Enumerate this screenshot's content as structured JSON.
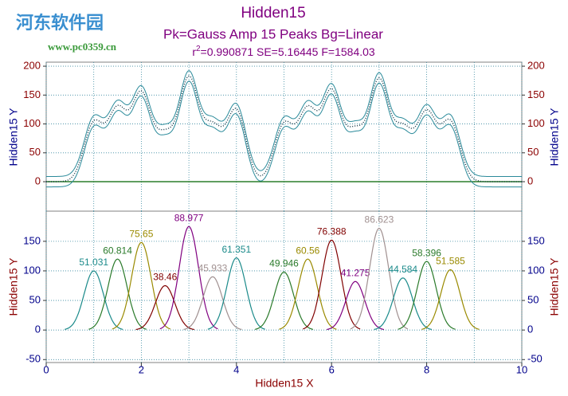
{
  "chart_data": {
    "type": "peakfit",
    "watermark": {
      "name": "河东软件园",
      "url": "www.pc0359.cn"
    },
    "title": "Hidden15",
    "subtitle": "Pk=Gauss Amp  15 Peaks  Bg=Linear",
    "stats": [
      "r",
      "2",
      "=0.990871  SE=5.16445  F=1584.03"
    ],
    "x_label": "Hidden15 X",
    "y_label": "Hidden15 Y",
    "xlim": [
      0,
      10
    ],
    "xticks": [
      0,
      2,
      4,
      6,
      8,
      10
    ],
    "xminor": [
      1,
      3,
      5,
      7,
      9
    ],
    "top": {
      "ylim": [
        -51,
        207
      ],
      "yticks": [
        0,
        50,
        100,
        150,
        200
      ],
      "band_halfwidth": 9
    },
    "bottom": {
      "ylim": [
        -55,
        201
      ],
      "yticks": [
        -50,
        0,
        50,
        100,
        150
      ]
    },
    "peaks": [
      {
        "center": 1,
        "height": 100,
        "label": 51.031,
        "color": "#1a8a8a"
      },
      {
        "center": 1.5,
        "height": 120,
        "label": 60.814,
        "color": "#2a7a2a"
      },
      {
        "center": 2,
        "height": 148,
        "label": 75.65,
        "color": "#9a8a00"
      },
      {
        "center": 2.5,
        "height": 75,
        "label": 38.46,
        "color": "#800000"
      },
      {
        "center": 3,
        "height": 175,
        "label": 88.977,
        "color": "#800080"
      },
      {
        "center": 3.5,
        "height": 90,
        "label": 45.933,
        "color": "#a09090"
      },
      {
        "center": 4,
        "height": 122,
        "label": 61.351,
        "color": "#1a8a8a"
      },
      {
        "center": 5,
        "height": 98,
        "label": 49.946,
        "color": "#2a7a2a"
      },
      {
        "center": 5.5,
        "height": 120,
        "label": 60.56,
        "color": "#9a8a00"
      },
      {
        "center": 6,
        "height": 152,
        "label": 76.388,
        "color": "#800000"
      },
      {
        "center": 6.5,
        "height": 82,
        "label": 41.275,
        "color": "#800080"
      },
      {
        "center": 7,
        "height": 172,
        "label": 86.623,
        "color": "#a09090"
      },
      {
        "center": 7.5,
        "height": 88,
        "label": 44.584,
        "color": "#1a8a8a"
      },
      {
        "center": 8,
        "height": 116,
        "label": 58.396,
        "color": "#2a7a2a"
      },
      {
        "center": 8.5,
        "height": 102,
        "label": 51.585,
        "color": "#9a8a00"
      }
    ]
  }
}
